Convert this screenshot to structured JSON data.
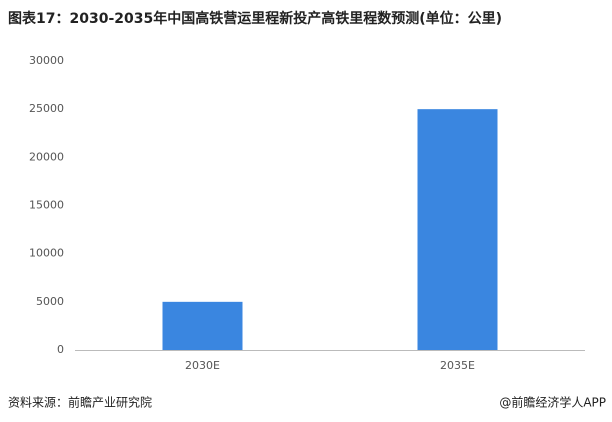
{
  "chart_data": {
    "type": "bar",
    "title": "图表17：2030-2035年中国高铁营运里程新投产高铁里程数预测(单位：公里)",
    "categories": [
      "2030E",
      "2035E"
    ],
    "values": [
      5000,
      25000
    ],
    "color": "#3a86e0",
    "ylim": [
      0,
      30000
    ],
    "yticks": [
      0,
      5000,
      10000,
      15000,
      20000,
      25000,
      30000
    ],
    "grid": false,
    "source": "资料来源：前瞻产业研究院",
    "credit": "@前瞻经济学人APP"
  }
}
